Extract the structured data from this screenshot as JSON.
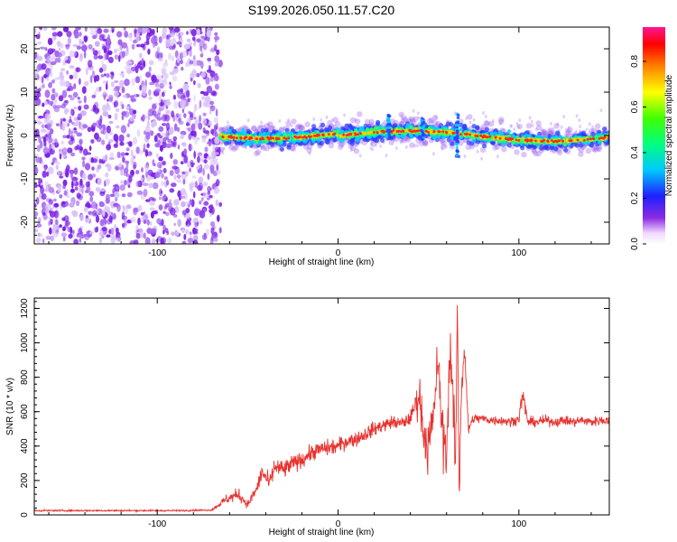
{
  "title": "S199.2026.050.11.57.C20",
  "colors": {
    "snr_line": "#e8322e",
    "spectrogram_noise": "#7a2be2",
    "axis": "#000000"
  },
  "chart_data": [
    {
      "type": "heatmap",
      "name": "spectrogram",
      "xlabel": "Height of straight line (km)",
      "ylabel": "Frequency (Hz)",
      "xlim": [
        -168,
        150
      ],
      "ylim": [
        -25,
        25
      ],
      "x_ticks": [
        -100,
        0,
        100
      ],
      "x_tick_labels": [
        "-100",
        "0",
        "100"
      ],
      "y_ticks": [
        -20,
        -10,
        0,
        10,
        20
      ],
      "y_tick_labels": [
        "-20",
        "-10",
        "0",
        "10",
        "20"
      ],
      "noise_region_x": [
        -168,
        -65
      ],
      "signal": {
        "x_start": -65,
        "x_end": 150,
        "center_freq": 0.5,
        "bursts": [
          {
            "x": 28,
            "freq_span": [
              -1,
              5
            ]
          },
          {
            "x": 47,
            "freq_span": [
              -1,
              4
            ]
          },
          {
            "x": 66,
            "freq_span": [
              -5,
              5
            ]
          }
        ]
      },
      "colorbar": {
        "label": "Normalized spectral amplitude",
        "range": [
          0,
          0.95
        ],
        "ticks": [
          0.0,
          0.2,
          0.4,
          0.6,
          0.8
        ],
        "tick_labels": [
          "0.0",
          "0.2",
          "0.4",
          "0.6",
          "0.8"
        ]
      }
    },
    {
      "type": "line",
      "name": "snr",
      "xlabel": "Height of straight line (km)",
      "ylabel": "SNR (10 * v/v)",
      "xlim": [
        -168,
        150
      ],
      "ylim": [
        0,
        1260
      ],
      "x_ticks": [
        -100,
        0,
        100
      ],
      "x_tick_labels": [
        "-100",
        "0",
        "100"
      ],
      "y_ticks": [
        0,
        200,
        400,
        600,
        800,
        1000,
        1200
      ],
      "y_tick_labels": [
        "0",
        "200",
        "400",
        "600",
        "800",
        "1000",
        "1200"
      ],
      "series": [
        {
          "name": "SNR",
          "x": [
            -168,
            -150,
            -130,
            -110,
            -90,
            -70,
            -62,
            -55,
            -50,
            -45,
            -42,
            -38,
            -35,
            -30,
            -25,
            -20,
            -15,
            -10,
            -5,
            0,
            5,
            10,
            15,
            20,
            25,
            30,
            35,
            40,
            43,
            45,
            47,
            50,
            53,
            55,
            58,
            60,
            62,
            65,
            66,
            67,
            68,
            70,
            72,
            75,
            80,
            85,
            90,
            95,
            100,
            102,
            105,
            110,
            115,
            120,
            125,
            130,
            135,
            140,
            145,
            150
          ],
          "values": [
            25,
            25,
            25,
            25,
            25,
            28,
            90,
            120,
            60,
            150,
            250,
            180,
            280,
            260,
            300,
            320,
            360,
            380,
            390,
            400,
            430,
            440,
            470,
            500,
            520,
            540,
            530,
            560,
            650,
            700,
            500,
            380,
            600,
            900,
            450,
            350,
            1000,
            300,
            1250,
            60,
            700,
            980,
            500,
            560,
            560,
            550,
            550,
            540,
            560,
            700,
            540,
            540,
            550,
            540,
            550,
            540,
            550,
            540,
            550,
            550
          ],
          "noise_amplitude": [
            5,
            5,
            5,
            5,
            5,
            5,
            30,
            40,
            25,
            40,
            60,
            50,
            60,
            60,
            50,
            50,
            50,
            50,
            50,
            50,
            45,
            45,
            45,
            45,
            40,
            40,
            40,
            40,
            80,
            150,
            120,
            200,
            100,
            150,
            200,
            150,
            150,
            200,
            50,
            50,
            120,
            100,
            60,
            30,
            30,
            30,
            30,
            30,
            30,
            80,
            30,
            30,
            30,
            30,
            30,
            30,
            30,
            30,
            30,
            30
          ]
        }
      ]
    }
  ]
}
